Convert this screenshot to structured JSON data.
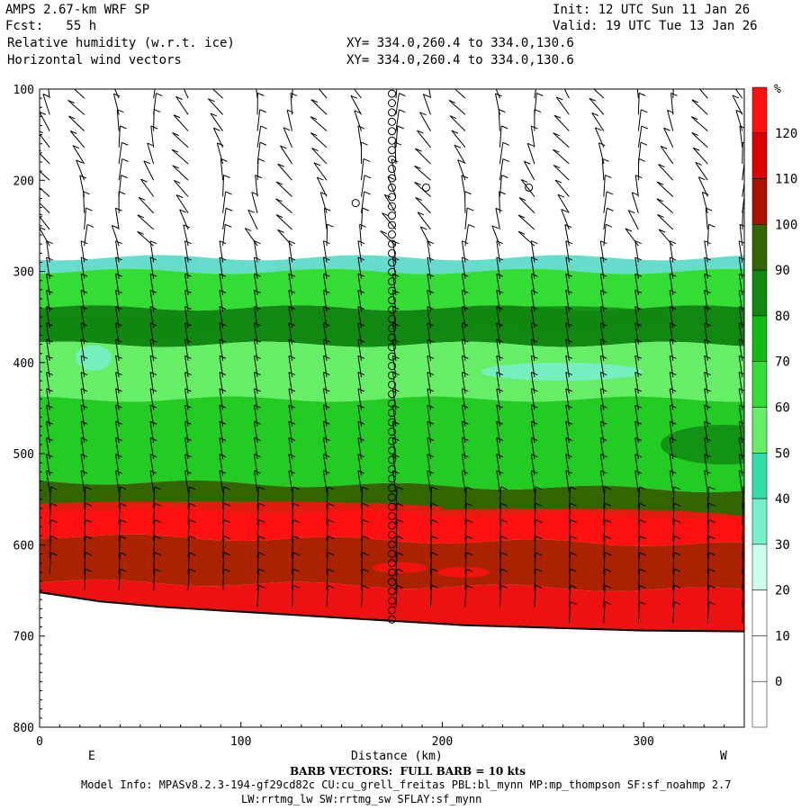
{
  "header": {
    "line1_left": "AMPS 2.67-km WRF SP",
    "line1_right": "Init: 12 UTC Sun 11 Jan 26",
    "line2_left": "Fcst:   55 h",
    "line2_right": "Valid: 19 UTC Tue 13 Jan 26",
    "line3_left": "Relative humidity (w.r.t. ice)",
    "line3_right": "XY= 334.0,260.4 to 334.0,130.6",
    "line4_left": "Horizontal wind vectors",
    "line4_right": "XY= 334.0,260.4 to 334.0,130.6"
  },
  "footer": {
    "barb_note": "BARB VECTORS:  FULL BARB = 10 kts",
    "model_info": "Model Info: MPASv8.2.3-194-gf29cd82c CU:cu_grell_freitas PBL:bl_mynn MP:mp_thompson SF:sf_noahmp 2.7",
    "model_info2": "LW:rrtmg_lw SW:rrtmg_sw SFLAY:sf_mynn"
  },
  "chart_data": {
    "type": "heatmap",
    "title": "Relative humidity (w.r.t. ice)",
    "xlabel": "Distance (km)",
    "ylabel": "",
    "x_end_labels": {
      "left": "E",
      "right": "W"
    },
    "xlim": [
      0,
      350
    ],
    "ylim": [
      800,
      100
    ],
    "y_scale": "linear-pressure",
    "x_ticks": [
      0,
      100,
      200,
      300
    ],
    "y_ticks": [
      100,
      200,
      300,
      400,
      500,
      600,
      700,
      800
    ],
    "colorbar": {
      "unit": "%",
      "levels": [
        0,
        10,
        20,
        30,
        40,
        50,
        60,
        70,
        80,
        90,
        100,
        110,
        120
      ],
      "colors": [
        "#ffffff",
        "#ffffff",
        "#ffffff",
        "#ccffee",
        "#77eecc",
        "#33ddaa",
        "#66ee66",
        "#33dd33",
        "#11bb11",
        "#118811",
        "#336600",
        "#aa1100",
        "#dd0000",
        "#ff1111"
      ]
    },
    "layers": [
      {
        "top_p": 100,
        "bottom_p": 285,
        "rh": "<30",
        "color": "#ffffff"
      },
      {
        "top_p": 285,
        "bottom_p": 300,
        "rh": "30-50",
        "color": "#66ddcc"
      },
      {
        "top_p": 300,
        "bottom_p": 340,
        "rh": "70-80",
        "color": "#33dd33"
      },
      {
        "top_p": 340,
        "bottom_p": 380,
        "rh": "80-100",
        "color": "#118811"
      },
      {
        "top_p": 380,
        "bottom_p": 440,
        "rh": "60-80",
        "color": "#66ee66"
      },
      {
        "top_p": 440,
        "bottom_p": 530,
        "rh": "70-90",
        "color": "#22cc22"
      },
      {
        "top_p": 530,
        "bottom_p": 560,
        "rh": "90-110",
        "color": "#336600"
      },
      {
        "top_p": 560,
        "bottom_p": 590,
        "rh": "110-130",
        "color": "#ff1111"
      },
      {
        "top_p": 590,
        "bottom_p": 640,
        "rh": "100-120",
        "color": "#aa2200"
      },
      {
        "top_p": 640,
        "bottom_p": 700,
        "rh": "110-130",
        "color": "#ee1111"
      }
    ],
    "terrain_p": [
      652,
      662,
      668,
      672,
      676,
      680,
      684,
      688,
      690,
      692,
      694,
      695
    ],
    "terrain_x": [
      0,
      30,
      60,
      90,
      120,
      150,
      180,
      210,
      240,
      270,
      300,
      350
    ],
    "wind_barb_full_kts": 10
  }
}
